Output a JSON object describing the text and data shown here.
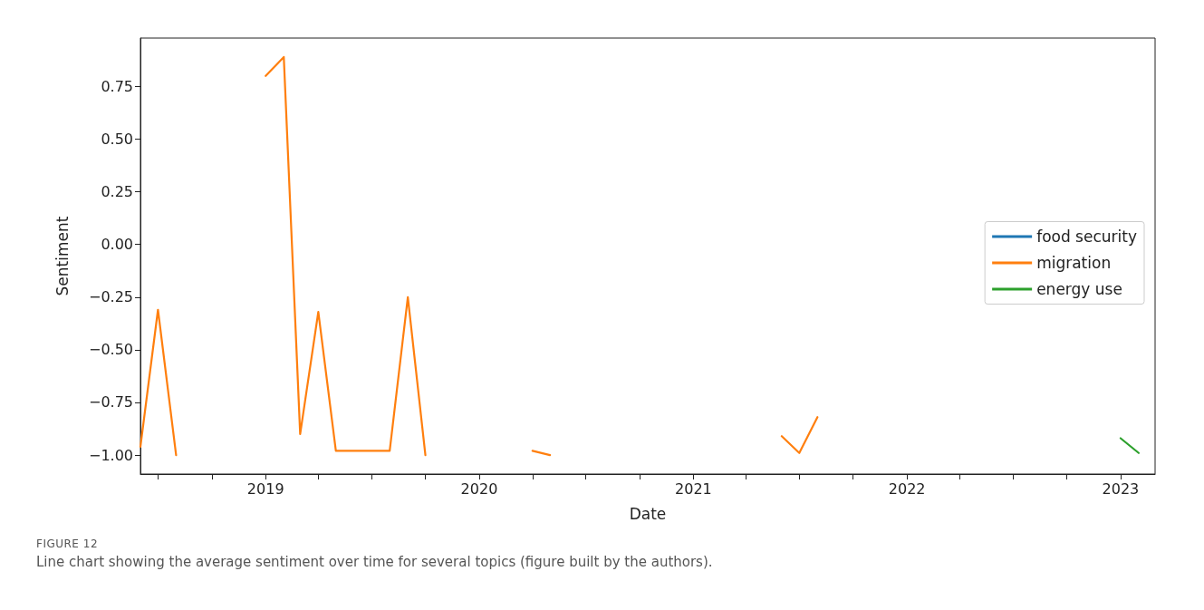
{
  "chart_data": {
    "type": "line",
    "xlabel": "Date",
    "ylabel": "Sentiment",
    "annotations": [
      "FIGURE 12",
      "Line chart showing the average sentiment over time for several topics (figure built by the authors)."
    ],
    "series": [
      {
        "name": "food security",
        "color": "#1f77b4"
      },
      {
        "name": "migration",
        "color": "#ff7f0e",
        "x": [
          "2018-06",
          "2018-07",
          "2018-08",
          "2018-09",
          "2019-01",
          "2019-02",
          "2019-03",
          "2019-04",
          "2019-05",
          "2019-06",
          "2019-07",
          "2019-08",
          "2019-09",
          "2019-10",
          "2019-11",
          "2020-04",
          "2020-05",
          "2020-06",
          "2021-06",
          "2021-07",
          "2021-08"
        ],
        "values": [
          -0.96,
          -0.31,
          -1.0,
          null,
          0.8,
          0.89,
          -0.9,
          -0.32,
          -0.98,
          -0.98,
          -0.98,
          -0.98,
          -0.25,
          -1.0,
          null,
          -0.98,
          -1.0,
          null,
          -0.91,
          -0.99,
          -0.82
        ]
      },
      {
        "name": "energy use",
        "color": "#2ca02c",
        "x": [
          "2023-01",
          "2023-02"
        ],
        "values": [
          -0.92,
          -0.99
        ]
      }
    ],
    "xlim": [
      "2018-06",
      "2023-03"
    ],
    "xticks": [
      {
        "value": "2018-07",
        "label": null
      },
      {
        "value": "2018-10",
        "label": null
      },
      {
        "value": "2019-01",
        "label": "2019"
      },
      {
        "value": "2019-04",
        "label": null
      },
      {
        "value": "2019-07",
        "label": null
      },
      {
        "value": "2019-10",
        "label": null
      },
      {
        "value": "2020-01",
        "label": "2020"
      },
      {
        "value": "2020-04",
        "label": null
      },
      {
        "value": "2020-07",
        "label": null
      },
      {
        "value": "2020-10",
        "label": null
      },
      {
        "value": "2021-01",
        "label": "2021"
      },
      {
        "value": "2021-04",
        "label": null
      },
      {
        "value": "2021-07",
        "label": null
      },
      {
        "value": "2021-10",
        "label": null
      },
      {
        "value": "2022-01",
        "label": "2022"
      },
      {
        "value": "2022-04",
        "label": null
      },
      {
        "value": "2022-07",
        "label": null
      },
      {
        "value": "2022-10",
        "label": null
      },
      {
        "value": "2023-01",
        "label": "2023"
      }
    ],
    "ylim": [
      -1.09,
      0.98
    ],
    "yticks": [
      {
        "value": -1.0,
        "label": "−1.00"
      },
      {
        "value": -0.75,
        "label": "−0.75"
      },
      {
        "value": -0.5,
        "label": "−0.50"
      },
      {
        "value": -0.25,
        "label": "−0.25"
      },
      {
        "value": 0,
        "label": "0.00"
      },
      {
        "value": 0.25,
        "label": "0.25"
      },
      {
        "value": 0.5,
        "label": "0.50"
      },
      {
        "value": 0.75,
        "label": "0.75"
      }
    ],
    "grid": false,
    "legend": "right",
    "line_style": "solid",
    "marker": "none"
  }
}
